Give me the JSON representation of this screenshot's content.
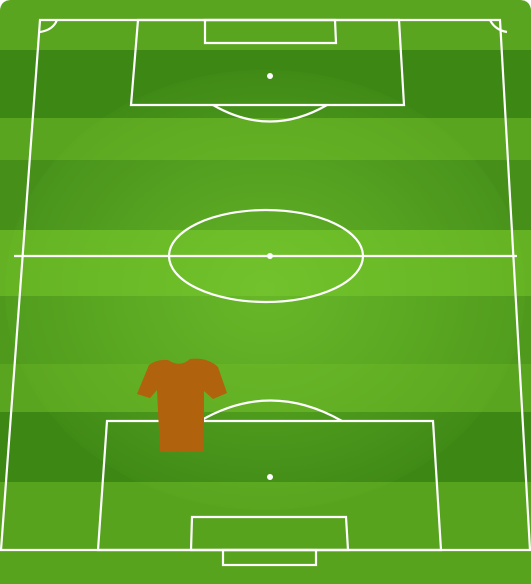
{
  "pitch": {
    "stripe_light": "#5aa51f",
    "stripe_dark": "#3f8a16",
    "glow": "#6ec32a",
    "line_color": "#ffffff"
  },
  "players": [
    {
      "role": "player",
      "shirt_color": "#b0620d"
    }
  ]
}
